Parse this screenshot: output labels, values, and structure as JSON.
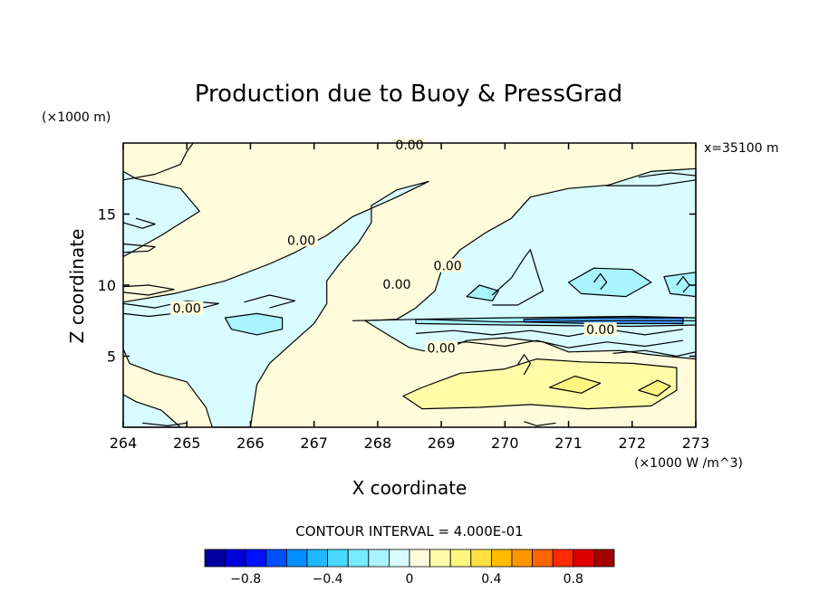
{
  "chart_data": {
    "type": "heatmap",
    "title": "Production due to Buoy & PressGrad",
    "xlabel": "X coordinate",
    "ylabel": "Z coordinate",
    "x_scale_label": "(×1000 W /m^3)",
    "y_scale_label": "(×1000 m)",
    "side_note": "x=35100 m",
    "xlim": [
      264,
      273
    ],
    "ylim": [
      0,
      20
    ],
    "x_ticks": [
      "264",
      "265",
      "266",
      "267",
      "268",
      "269",
      "270",
      "271",
      "272",
      "273"
    ],
    "x_tick_values": [
      264,
      265,
      266,
      267,
      268,
      269,
      270,
      271,
      272,
      273
    ],
    "y_ticks": [
      "5",
      "10",
      "15"
    ],
    "y_tick_values": [
      5,
      10,
      15
    ],
    "contour_labels": [
      {
        "text": "0.00",
        "x": 268.5,
        "y": 19.8
      },
      {
        "text": "0.00",
        "x": 266.8,
        "y": 13.1
      },
      {
        "text": "0.00",
        "x": 268.3,
        "y": 10.0
      },
      {
        "text": "0.00",
        "x": 269.1,
        "y": 11.3
      },
      {
        "text": "0.00",
        "x": 265.0,
        "y": 8.3
      },
      {
        "text": "0.00",
        "x": 269.0,
        "y": 5.5
      },
      {
        "text": "0.00",
        "x": 271.5,
        "y": 6.8
      }
    ],
    "regions": [
      {
        "level": "light-negative",
        "points": [
          [
            264,
            12
          ],
          [
            264.6,
            13.5
          ],
          [
            265.2,
            15.2
          ],
          [
            264.9,
            16.8
          ],
          [
            264.2,
            17.5
          ],
          [
            264,
            18
          ]
        ]
      },
      {
        "level": "light-negative",
        "points": [
          [
            264,
            8.8
          ],
          [
            264.8,
            9.4
          ],
          [
            265.6,
            10.3
          ],
          [
            266.3,
            11.5
          ],
          [
            266.7,
            12.3
          ],
          [
            267.2,
            13.5
          ],
          [
            267.6,
            14.8
          ],
          [
            268.3,
            16.2
          ],
          [
            268.8,
            17.3
          ],
          [
            268.3,
            16.7
          ],
          [
            267.9,
            15.6
          ],
          [
            267.9,
            14.4
          ],
          [
            267.7,
            13.0
          ],
          [
            267.4,
            11.5
          ],
          [
            267.2,
            10.3
          ],
          [
            267.2,
            8.7
          ],
          [
            267.0,
            7.3
          ],
          [
            266.7,
            6.1
          ],
          [
            266.3,
            4.5
          ],
          [
            266.1,
            3.0
          ],
          [
            266.0,
            0
          ],
          [
            265.4,
            0
          ],
          [
            265.3,
            1.4
          ],
          [
            265.0,
            3.2
          ],
          [
            264.5,
            3.8
          ],
          [
            264.1,
            4.5
          ],
          [
            264,
            5.5
          ]
        ]
      },
      {
        "level": "light-negative",
        "points": [
          [
            264,
            0
          ],
          [
            264.9,
            0
          ],
          [
            264.6,
            1.2
          ],
          [
            264.2,
            1.8
          ],
          [
            264,
            2.3
          ]
        ]
      },
      {
        "level": "light-negative",
        "points": [
          [
            267.8,
            7.5
          ],
          [
            268.3,
            7.6
          ],
          [
            268.6,
            8.4
          ],
          [
            268.9,
            9.6
          ],
          [
            269.0,
            11.0
          ],
          [
            269.3,
            12.5
          ],
          [
            269.7,
            13.7
          ],
          [
            270.1,
            14.7
          ],
          [
            270.4,
            16.2
          ],
          [
            271.0,
            16.8
          ],
          [
            271.8,
            17.1
          ],
          [
            272.4,
            17.6
          ],
          [
            273,
            17.9
          ],
          [
            273,
            4.8
          ],
          [
            272.3,
            5.1
          ],
          [
            271.8,
            5.4
          ],
          [
            271.0,
            5.3
          ],
          [
            270.6,
            6.0
          ],
          [
            270.0,
            6.3
          ],
          [
            269.4,
            6.1
          ],
          [
            268.9,
            5.2
          ],
          [
            268.5,
            5.6
          ],
          [
            268.2,
            6.4
          ]
        ]
      },
      {
        "level": "light-negative",
        "points": [
          [
            271.6,
            17.0
          ],
          [
            272.3,
            18.0
          ],
          [
            273,
            18.2
          ],
          [
            273,
            17.4
          ],
          [
            272.4,
            17.0
          ]
        ]
      },
      {
        "level": "mid-negative",
        "points": [
          [
            265.6,
            7.7
          ],
          [
            266.1,
            8.0
          ],
          [
            266.5,
            7.7
          ],
          [
            266.5,
            6.9
          ],
          [
            266.1,
            6.5
          ],
          [
            265.7,
            6.9
          ]
        ]
      },
      {
        "level": "mid-negative",
        "points": [
          [
            269.4,
            9.2
          ],
          [
            269.6,
            10.0
          ],
          [
            269.9,
            9.6
          ],
          [
            269.8,
            8.9
          ]
        ]
      },
      {
        "level": "mid-negative",
        "points": [
          [
            271.0,
            10.2
          ],
          [
            271.4,
            11.2
          ],
          [
            272.0,
            11.1
          ],
          [
            272.3,
            10.2
          ],
          [
            271.9,
            9.2
          ],
          [
            271.2,
            9.4
          ]
        ]
      },
      {
        "level": "mid-negative",
        "points": [
          [
            272.5,
            10.6
          ],
          [
            273,
            10.9
          ],
          [
            273,
            9.2
          ],
          [
            272.6,
            9.4
          ]
        ]
      },
      {
        "level": "mid-negative",
        "points": [
          [
            268.6,
            7.6
          ],
          [
            270.0,
            7.7
          ],
          [
            272.0,
            7.8
          ],
          [
            273,
            7.7
          ],
          [
            273,
            7.2
          ],
          [
            272.0,
            7.1
          ],
          [
            270.0,
            7.2
          ],
          [
            268.6,
            7.3
          ]
        ]
      },
      {
        "level": "strong-negative",
        "points": [
          [
            270.3,
            7.6
          ],
          [
            271.4,
            7.7
          ],
          [
            272.8,
            7.7
          ],
          [
            272.8,
            7.3
          ],
          [
            271.4,
            7.3
          ],
          [
            270.3,
            7.4
          ]
        ]
      },
      {
        "level": "light-positive",
        "points": [
          [
            268.7,
            2.8
          ],
          [
            269.3,
            3.8
          ],
          [
            270.0,
            4.1
          ],
          [
            270.5,
            4.8
          ],
          [
            271.2,
            4.6
          ],
          [
            272.0,
            4.5
          ],
          [
            272.7,
            4.2
          ],
          [
            272.7,
            2.6
          ],
          [
            272.3,
            1.5
          ],
          [
            271.3,
            1.3
          ],
          [
            270.4,
            1.6
          ],
          [
            269.6,
            1.4
          ],
          [
            268.7,
            1.3
          ],
          [
            268.4,
            2.2
          ]
        ]
      },
      {
        "level": "mid-positive",
        "points": [
          [
            270.7,
            2.8
          ],
          [
            271.1,
            3.6
          ],
          [
            271.5,
            3.1
          ],
          [
            271.2,
            2.4
          ]
        ]
      },
      {
        "level": "mid-positive",
        "points": [
          [
            272.1,
            2.6
          ],
          [
            272.4,
            3.3
          ],
          [
            272.6,
            2.9
          ],
          [
            272.4,
            2.2
          ]
        ]
      }
    ],
    "isolines": [
      {
        "points": [
          [
            264,
            17.4
          ],
          [
            264.5,
            17.8
          ],
          [
            264.9,
            18.5
          ],
          [
            265.0,
            19.4
          ],
          [
            265.1,
            20
          ]
        ]
      },
      {
        "points": [
          [
            264,
            14.4
          ],
          [
            264.3,
            14.0
          ],
          [
            264.5,
            14.3
          ],
          [
            264.2,
            14.7
          ]
        ]
      },
      {
        "points": [
          [
            264,
            12.3
          ],
          [
            264.4,
            12.4
          ],
          [
            264.5,
            12.7
          ],
          [
            264,
            12.9
          ]
        ]
      },
      {
        "points": [
          [
            264,
            9.5
          ],
          [
            264.4,
            9.3
          ],
          [
            264.8,
            9.7
          ],
          [
            264.4,
            10.0
          ],
          [
            264,
            9.9
          ]
        ]
      },
      {
        "points": [
          [
            264,
            8.7
          ],
          [
            264.5,
            8.4
          ],
          [
            265.0,
            8.9
          ],
          [
            265.5,
            8.7
          ],
          [
            265.0,
            8.1
          ],
          [
            264.4,
            7.8
          ],
          [
            264,
            8.0
          ]
        ]
      },
      {
        "points": [
          [
            265.9,
            8.8
          ],
          [
            266.3,
            9.3
          ],
          [
            266.7,
            8.9
          ],
          [
            266.3,
            8.4
          ]
        ]
      },
      {
        "points": [
          [
            267.6,
            7.5
          ],
          [
            268.7,
            7.6
          ],
          [
            270.0,
            7.4
          ],
          [
            271.5,
            7.5
          ],
          [
            273,
            7.5
          ]
        ]
      },
      {
        "points": [
          [
            268.6,
            6.6
          ],
          [
            269.2,
            6.8
          ],
          [
            269.8,
            6.5
          ],
          [
            270.4,
            6.8
          ],
          [
            271.0,
            6.4
          ],
          [
            271.6,
            6.9
          ],
          [
            272.2,
            6.5
          ],
          [
            272.8,
            6.9
          ]
        ]
      },
      {
        "points": [
          [
            268.8,
            5.8
          ],
          [
            269.4,
            6.0
          ],
          [
            270.0,
            5.7
          ],
          [
            270.5,
            6.1
          ],
          [
            271.0,
            5.6
          ],
          [
            271.6,
            6.0
          ],
          [
            272.2,
            5.7
          ],
          [
            272.8,
            6.1
          ]
        ]
      },
      {
        "points": [
          [
            271.7,
            5.2
          ],
          [
            272.2,
            5.4
          ],
          [
            272.7,
            5.0
          ],
          [
            273,
            5.3
          ]
        ]
      },
      {
        "points": [
          [
            270.2,
            4.4
          ],
          [
            270.3,
            5.1
          ],
          [
            270.4,
            4.5
          ],
          [
            270.3,
            3.7
          ]
        ]
      },
      {
        "points": [
          [
            271.4,
            10.2
          ],
          [
            271.5,
            10.8
          ],
          [
            271.6,
            10.2
          ],
          [
            271.5,
            9.7
          ]
        ]
      },
      {
        "points": [
          [
            272.7,
            10.0
          ],
          [
            272.8,
            10.6
          ],
          [
            272.9,
            10.0
          ],
          [
            272.8,
            9.5
          ]
        ]
      },
      {
        "points": [
          [
            272.1,
            17.6
          ],
          [
            272.6,
            17.9
          ],
          [
            273,
            17.7
          ]
        ]
      },
      {
        "points": [
          [
            269.8,
            9.3
          ],
          [
            270.1,
            10.5
          ],
          [
            270.3,
            11.9
          ],
          [
            270.4,
            12.5
          ],
          [
            270.5,
            11.0
          ],
          [
            270.6,
            9.6
          ],
          [
            270.2,
            8.6
          ],
          [
            269.8,
            8.6
          ]
        ]
      },
      {
        "points": [
          [
            264.3,
            0.3
          ],
          [
            264.7,
            0.1
          ],
          [
            265.0,
            0.3
          ]
        ]
      },
      {
        "points": [
          [
            270.3,
            0.4
          ],
          [
            270.5,
            0.1
          ],
          [
            270.8,
            0.3
          ]
        ]
      }
    ],
    "contour_interval_text": "CONTOUR INTERVAL = 4.000E-01",
    "colorbar": {
      "colors": [
        "#0000a0",
        "#0000d8",
        "#0010ff",
        "#0050ff",
        "#0090ff",
        "#22b8ff",
        "#48d8ff",
        "#78eaff",
        "#a8f4ff",
        "#d8fcff",
        "#fffcdc",
        "#fffca8",
        "#fff680",
        "#ffe040",
        "#ffbc00",
        "#ff9600",
        "#ff6400",
        "#ff2c00",
        "#e00000",
        "#a00000"
      ],
      "tick_labels": [
        "−0.8",
        "−0.4",
        "0",
        "0.4",
        "0.8"
      ],
      "tick_values": [
        -0.8,
        -0.4,
        0,
        0.4,
        0.8
      ],
      "range": [
        -1.0,
        1.0
      ]
    },
    "level_colors": {
      "background": "#fffcdc",
      "light-negative": "#d8fcff",
      "mid-negative": "#a8f4ff",
      "strong-negative": "#48a0ff",
      "light-positive": "#fffca8",
      "mid-positive": "#fff680"
    }
  }
}
